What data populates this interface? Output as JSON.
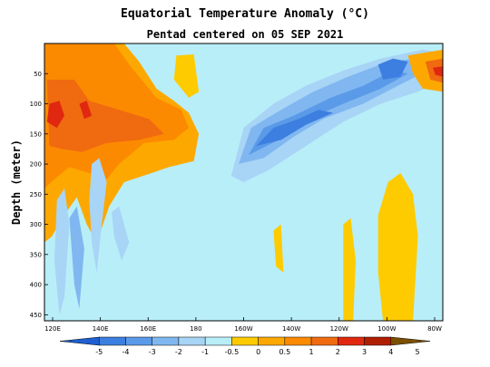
{
  "title": "Equatorial Temperature Anomaly (°C)",
  "subtitle": "Pentad centered on 05 SEP 2021",
  "chart_data": {
    "type": "heatmap",
    "title": "Equatorial Temperature Anomaly (°C)",
    "subtitle": "Pentad centered on 05 SEP 2021",
    "xlabel": "",
    "ylabel": "Depth (meter)",
    "x_ticks": [
      "120E",
      "140E",
      "160E",
      "180",
      "160W",
      "140W",
      "120W",
      "100W",
      "80W"
    ],
    "x_range_deg_east": [
      120,
      280
    ],
    "y_ticks": [
      "50",
      "100",
      "150",
      "200",
      "250",
      "300",
      "350",
      "400",
      "450"
    ],
    "y_range_m": [
      0,
      460
    ],
    "y_inverted": true,
    "colorbar": {
      "levels": [
        "-5",
        "-4",
        "-3",
        "-2",
        "-1",
        "-0.5",
        "0",
        "0.5",
        "1",
        "2",
        "3",
        "4",
        "5"
      ],
      "colors": [
        "#1f5fd0",
        "#3c7fe0",
        "#5a9ae8",
        "#80b7f0",
        "#a8d4f6",
        "#b8eef8",
        "#fdcb00",
        "#fda800",
        "#fc8a00",
        "#f06a10",
        "#e02810",
        "#b01e00",
        "#7a5000"
      ]
    },
    "fields": [
      {
        "anomaly": "-0.5 to 0",
        "color": "#b8eef8",
        "region": "background (most of section)"
      },
      {
        "anomaly": "0.5 to 2",
        "color": "#fda800",
        "region": "western Pacific 120E-150E, 0-200 m"
      },
      {
        "anomaly": "1 to 2",
        "color": "#f06a10",
        "region": "core near 125E-145E, 80-170 m"
      },
      {
        "anomaly": "-2 to -3",
        "color": "#5a9ae8",
        "region": "tilted cold tongue 165W-115W, 40-200 m"
      },
      {
        "anomaly": "-3 to -4",
        "color": "#3c7fe0",
        "region": "cores near 155W, 140 m and 115W, 60 m"
      },
      {
        "anomaly": "0 to 1",
        "color": "#fdcb00",
        "region": "eastern Pacific 105W-95W, 220-450 m"
      },
      {
        "anomaly": "1 to 3",
        "color": "#e02810",
        "region": "near 82W, 40-80 m"
      }
    ]
  }
}
